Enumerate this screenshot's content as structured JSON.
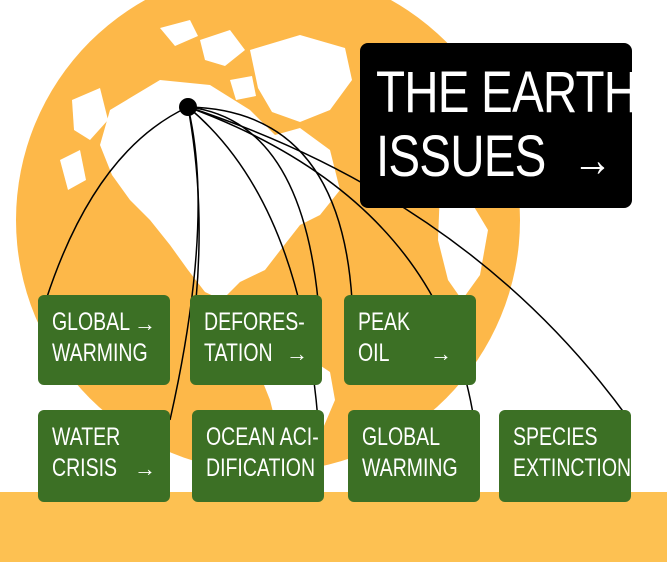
{
  "title": {
    "line1": "THE EARTH",
    "line2": "ISSUES",
    "arrow": "→"
  },
  "colors": {
    "globe": "#fdb849",
    "land": "#ffffff",
    "card": "#3c7025",
    "band": "#fdc152",
    "title_bg": "#000000"
  },
  "cards": [
    {
      "line1": "GLOBAL",
      "line2": "WARMING",
      "arrow": "→"
    },
    {
      "line1": "DEFORES-",
      "line2": "TATION",
      "arrow": "→"
    },
    {
      "line1": "PEAK",
      "line2": "OIL",
      "arrow": "→"
    },
    {
      "line1": "WATER",
      "line2": "CRISIS",
      "arrow": "→"
    },
    {
      "line1": "OCEAN ACI-",
      "line2": "DIFICATION",
      "arrow": ""
    },
    {
      "line1": "GLOBAL",
      "line2": "WARMING",
      "arrow": ""
    },
    {
      "line1": "SPECIES",
      "line2": "EXTINCTION",
      "arrow": ""
    }
  ]
}
